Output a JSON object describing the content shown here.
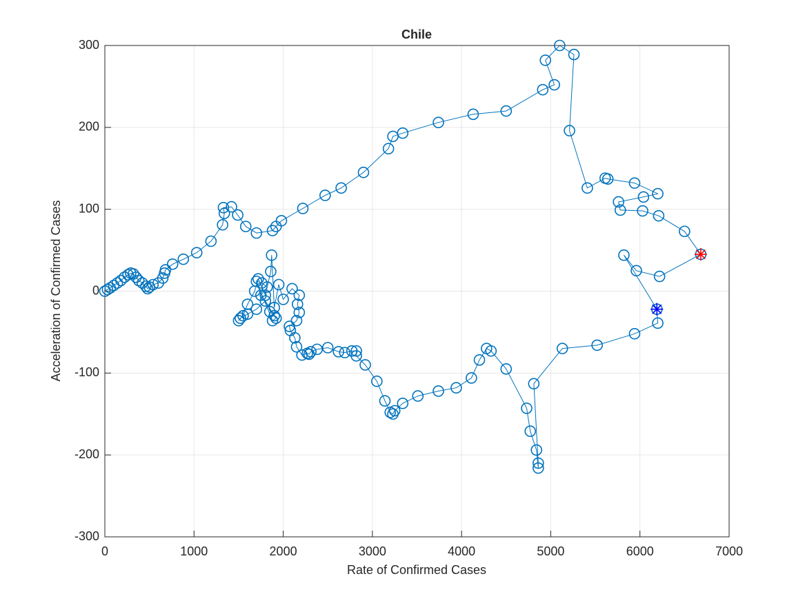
{
  "chart_data": {
    "type": "scatter",
    "title": "Chile",
    "xlabel": "Rate of Confirmed Cases",
    "ylabel": "Acceleration of Confirmed Cases",
    "xlim": [
      0,
      7000
    ],
    "xticks": [
      0,
      1000,
      2000,
      3000,
      4000,
      5000,
      6000,
      7000
    ],
    "ylim": [
      -300,
      300
    ],
    "yticks": [
      -300,
      -200,
      -100,
      0,
      100,
      200,
      300
    ],
    "grid": true,
    "series": [
      {
        "color": "#0072bd",
        "marker": "o",
        "line": true,
        "x": [
          0,
          30,
          60,
          100,
          140,
          180,
          220,
          260,
          290,
          320,
          350,
          380,
          420,
          460,
          480,
          500,
          540,
          600,
          650,
          670,
          680,
          760,
          880,
          1030,
          1190,
          1320,
          1340,
          1330,
          1420,
          1490,
          1580,
          1700,
          1880,
          1920,
          1980,
          2220,
          2470,
          2650,
          2900,
          3180,
          3230,
          3340,
          3740,
          4130,
          4500,
          4910,
          5040,
          4940,
          5100,
          5260,
          5210,
          5410,
          5610,
          5640,
          5940,
          6200,
          6040,
          5760,
          5780,
          6030,
          6210,
          6500,
          6682,
          6220,
          5960,
          5820,
          6190,
          6200,
          5940,
          5520,
          5130,
          4810,
          4860,
          4860,
          4840,
          4770,
          4730,
          4500,
          4330,
          4280,
          4200,
          4110,
          3940,
          3740,
          3510,
          3340,
          3250,
          3230,
          3200,
          3140,
          3050,
          2920,
          2820,
          2820,
          2770,
          2690,
          2620,
          2500,
          2380,
          2310,
          2290,
          2270,
          2210,
          2150,
          2130,
          2080,
          2070,
          2150,
          2180,
          2160,
          2180,
          2100,
          2000,
          1950,
          1900,
          1870,
          1860,
          1800,
          1720,
          1680,
          1600,
          1550,
          1500,
          1520,
          1600,
          1700,
          1800,
          1900,
          1750,
          1820,
          1760,
          1700,
          1880,
          1920,
          1850
        ],
        "values": [
          0,
          2,
          4,
          7,
          10,
          13,
          17,
          20,
          22,
          21,
          17,
          13,
          10,
          6,
          3,
          5,
          8,
          10,
          16,
          22,
          26,
          33,
          39,
          47,
          61,
          81,
          95,
          102,
          103,
          93,
          79,
          71,
          74,
          79,
          86,
          101,
          117,
          126,
          145,
          174,
          189,
          193,
          206,
          216,
          220,
          246,
          252,
          282,
          300,
          289,
          196,
          126,
          138,
          137,
          132,
          119,
          115,
          109,
          99,
          98,
          92,
          73,
          45,
          18,
          25,
          44,
          -22,
          -39,
          -52,
          -66,
          -70,
          -113,
          -210,
          -216,
          -194,
          -171,
          -143,
          -95,
          -73,
          -70,
          -84,
          -106,
          -118,
          -122,
          -128,
          -137,
          -146,
          -150,
          -148,
          -134,
          -110,
          -90,
          -79,
          -73,
          -73,
          -75,
          -74,
          -69,
          -71,
          -74,
          -77,
          -76,
          -78,
          -68,
          -57,
          -48,
          -43,
          -36,
          -26,
          -16,
          -5,
          3,
          -10,
          8,
          -20,
          44,
          24,
          -5,
          15,
          0,
          -16,
          -30,
          -36,
          -33,
          -28,
          -22,
          -12,
          -30,
          -5,
          5,
          10,
          12,
          -36,
          -33,
          -25
        ]
      },
      {
        "color": "#0000ff",
        "marker": "*",
        "line": false,
        "x": [
          6190
        ],
        "values": [
          -22
        ]
      },
      {
        "color": "#ff0000",
        "marker": "*",
        "line": false,
        "x": [
          6682
        ],
        "values": [
          45
        ]
      }
    ]
  }
}
